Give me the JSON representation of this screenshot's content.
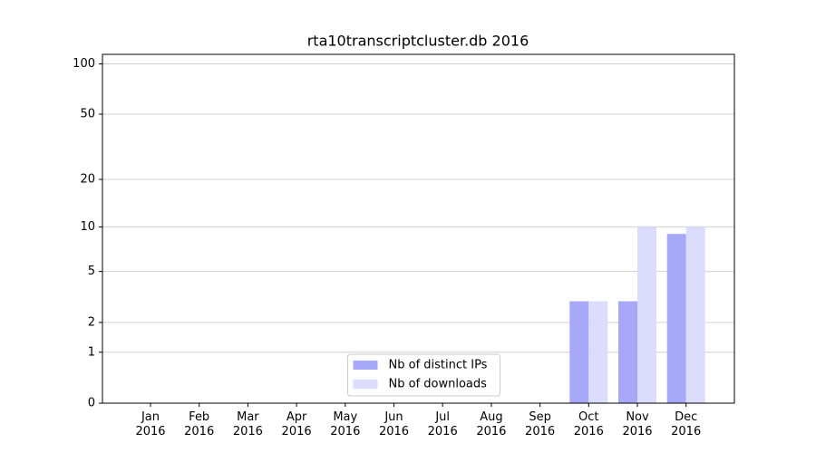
{
  "chart_data": {
    "type": "bar",
    "title": "rta10transcriptcluster.db 2016",
    "categories": [
      "Jan\n2016",
      "Feb\n2016",
      "Mar\n2016",
      "Apr\n2016",
      "May\n2016",
      "Jun\n2016",
      "Jul\n2016",
      "Aug\n2016",
      "Sep\n2016",
      "Oct\n2016",
      "Nov\n2016",
      "Dec\n2016"
    ],
    "series": [
      {
        "name": "Nb of distinct IPs",
        "color": "#a8a8f8",
        "values": [
          0,
          0,
          0,
          0,
          0,
          0,
          0,
          0,
          0,
          3,
          3,
          9
        ]
      },
      {
        "name": "Nb of downloads",
        "color": "#dcdcfc",
        "values": [
          0,
          0,
          0,
          0,
          0,
          0,
          0,
          0,
          0,
          3,
          10,
          10
        ]
      }
    ],
    "yscale": "log1p",
    "ylim": [
      0,
      114
    ],
    "yticks": [
      0,
      1,
      2,
      5,
      10,
      20,
      50,
      100
    ],
    "grid": true,
    "legend": "lower center"
  }
}
